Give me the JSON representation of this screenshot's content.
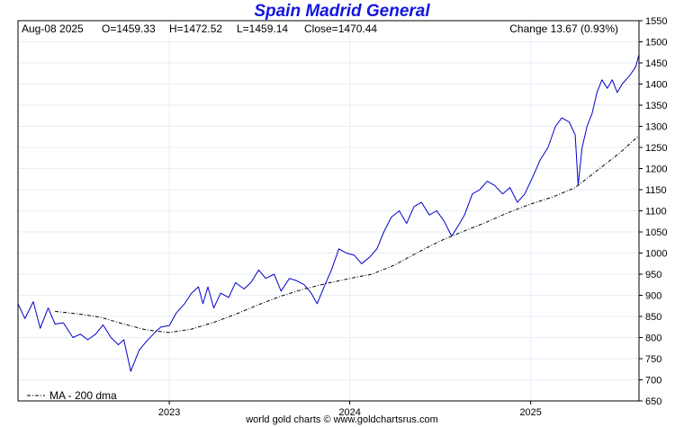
{
  "chart_data": {
    "type": "line",
    "title": "Spain Madrid General",
    "ohlc_header": {
      "date": "Aug-08  2025",
      "open": "O=1459.33",
      "high": "H=1472.52",
      "low": "L=1459.14",
      "close": "Close=1470.44",
      "change": "Change 13.67 (0.93%)"
    },
    "y_ticks": [
      "1550",
      "1500",
      "1450",
      "1400",
      "1350",
      "1300",
      "1250",
      "1200",
      "1150",
      "1100",
      "1050",
      "1000",
      "950",
      "900",
      "850",
      "800",
      "750",
      "700",
      "650"
    ],
    "ylim": [
      650,
      1550
    ],
    "x_ticks": [
      {
        "label": "2023",
        "x": "2023-01-01"
      },
      {
        "label": "2024",
        "x": "2024-01-01"
      },
      {
        "label": "2025",
        "x": "2025-01-01"
      }
    ],
    "xlim": [
      "2022-03-01",
      "2025-08-08"
    ],
    "grid": true,
    "legend": {
      "position": "bottom-left",
      "label": "MA - 200 dma"
    },
    "series": [
      {
        "style": "solid",
        "color": "#0000cc",
        "x": [
          "2022-03-01",
          "2022-03-15",
          "2022-04-01",
          "2022-04-15",
          "2022-05-01",
          "2022-05-15",
          "2022-06-01",
          "2022-06-20",
          "2022-07-05",
          "2022-07-20",
          "2022-08-05",
          "2022-08-20",
          "2022-09-05",
          "2022-09-20",
          "2022-10-01",
          "2022-10-15",
          "2022-11-01",
          "2022-11-15",
          "2022-12-01",
          "2022-12-15",
          "2023-01-01",
          "2023-01-15",
          "2023-02-01",
          "2023-02-15",
          "2023-03-01",
          "2023-03-10",
          "2023-03-20",
          "2023-04-01",
          "2023-04-15",
          "2023-05-01",
          "2023-05-15",
          "2023-06-01",
          "2023-06-15",
          "2023-07-01",
          "2023-07-15",
          "2023-08-01",
          "2023-08-15",
          "2023-09-01",
          "2023-09-15",
          "2023-10-01",
          "2023-10-15",
          "2023-10-27",
          "2023-11-10",
          "2023-11-25",
          "2023-12-10",
          "2023-12-25",
          "2024-01-10",
          "2024-01-25",
          "2024-02-10",
          "2024-02-25",
          "2024-03-10",
          "2024-03-25",
          "2024-04-10",
          "2024-04-25",
          "2024-05-10",
          "2024-05-25",
          "2024-06-10",
          "2024-06-25",
          "2024-07-10",
          "2024-07-25",
          "2024-08-05",
          "2024-08-20",
          "2024-09-05",
          "2024-09-20",
          "2024-10-05",
          "2024-10-20",
          "2024-11-05",
          "2024-11-20",
          "2024-12-05",
          "2024-12-20",
          "2025-01-05",
          "2025-01-20",
          "2025-02-05",
          "2025-02-20",
          "2025-03-05",
          "2025-03-20",
          "2025-04-01",
          "2025-04-07",
          "2025-04-15",
          "2025-04-25",
          "2025-05-05",
          "2025-05-15",
          "2025-05-25",
          "2025-06-05",
          "2025-06-15",
          "2025-06-25",
          "2025-07-05",
          "2025-07-20",
          "2025-08-01",
          "2025-08-08"
        ],
        "values": [
          880,
          845,
          885,
          822,
          870,
          832,
          835,
          800,
          808,
          795,
          808,
          830,
          800,
          783,
          795,
          720,
          770,
          790,
          810,
          825,
          828,
          858,
          880,
          905,
          920,
          880,
          920,
          870,
          905,
          895,
          930,
          915,
          930,
          960,
          940,
          950,
          910,
          940,
          935,
          925,
          905,
          880,
          920,
          960,
          1010,
          1000,
          995,
          975,
          990,
          1010,
          1050,
          1085,
          1100,
          1070,
          1110,
          1120,
          1090,
          1100,
          1075,
          1040,
          1060,
          1090,
          1140,
          1150,
          1170,
          1160,
          1140,
          1155,
          1120,
          1140,
          1180,
          1220,
          1250,
          1300,
          1320,
          1310,
          1280,
          1160,
          1250,
          1300,
          1330,
          1380,
          1410,
          1390,
          1410,
          1380,
          1400,
          1420,
          1440,
          1470
        ]
      },
      {
        "name": "MA - 200 dma",
        "style": "dashdot",
        "color": "#000000",
        "x": [
          "2022-05-15",
          "2022-07-01",
          "2022-08-15",
          "2022-10-01",
          "2022-11-15",
          "2023-01-01",
          "2023-02-15",
          "2023-04-01",
          "2023-05-15",
          "2023-07-01",
          "2023-08-15",
          "2023-10-01",
          "2023-11-15",
          "2024-01-01",
          "2024-02-15",
          "2024-04-01",
          "2024-05-15",
          "2024-07-01",
          "2024-08-15",
          "2024-10-01",
          "2024-11-15",
          "2025-01-01",
          "2025-02-15",
          "2025-04-01",
          "2025-05-15",
          "2025-07-01",
          "2025-08-08"
        ],
        "values": [
          862,
          856,
          848,
          832,
          818,
          812,
          820,
          836,
          855,
          878,
          898,
          915,
          928,
          940,
          950,
          972,
          1000,
          1028,
          1050,
          1072,
          1095,
          1116,
          1133,
          1155,
          1195,
          1238,
          1278
        ]
      }
    ]
  },
  "footer": "world gold charts © www.goldchartsrus.com"
}
